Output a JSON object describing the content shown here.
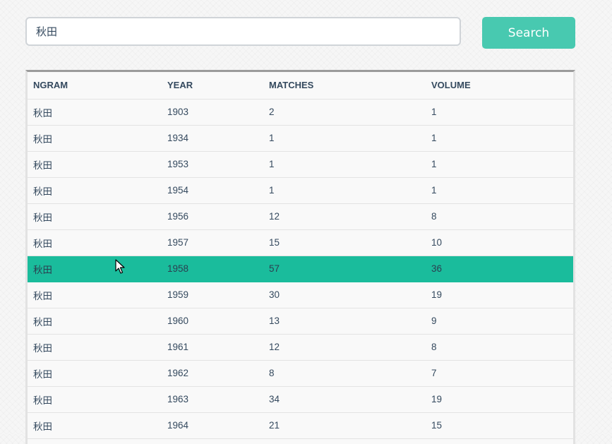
{
  "search": {
    "value": "秋田",
    "button_label": "Search"
  },
  "table": {
    "columns": [
      "NGRAM",
      "YEAR",
      "MATCHES",
      "VOLUME"
    ],
    "rows": [
      {
        "ngram": "秋田",
        "year": "1903",
        "matches": "2",
        "volume": "1",
        "selected": false
      },
      {
        "ngram": "秋田",
        "year": "1934",
        "matches": "1",
        "volume": "1",
        "selected": false
      },
      {
        "ngram": "秋田",
        "year": "1953",
        "matches": "1",
        "volume": "1",
        "selected": false
      },
      {
        "ngram": "秋田",
        "year": "1954",
        "matches": "1",
        "volume": "1",
        "selected": false
      },
      {
        "ngram": "秋田",
        "year": "1956",
        "matches": "12",
        "volume": "8",
        "selected": false
      },
      {
        "ngram": "秋田",
        "year": "1957",
        "matches": "15",
        "volume": "10",
        "selected": false
      },
      {
        "ngram": "秋田",
        "year": "1958",
        "matches": "57",
        "volume": "36",
        "selected": true
      },
      {
        "ngram": "秋田",
        "year": "1959",
        "matches": "30",
        "volume": "19",
        "selected": false
      },
      {
        "ngram": "秋田",
        "year": "1960",
        "matches": "13",
        "volume": "9",
        "selected": false
      },
      {
        "ngram": "秋田",
        "year": "1961",
        "matches": "12",
        "volume": "8",
        "selected": false
      },
      {
        "ngram": "秋田",
        "year": "1962",
        "matches": "8",
        "volume": "7",
        "selected": false
      },
      {
        "ngram": "秋田",
        "year": "1963",
        "matches": "34",
        "volume": "19",
        "selected": false
      },
      {
        "ngram": "秋田",
        "year": "1964",
        "matches": "21",
        "volume": "15",
        "selected": false
      }
    ]
  },
  "colors": {
    "accent": "#48c9b0",
    "selected_row": "#1abc9c",
    "text": "#34495e"
  },
  "icons": {
    "pointer": "mouse-pointer-icon"
  }
}
